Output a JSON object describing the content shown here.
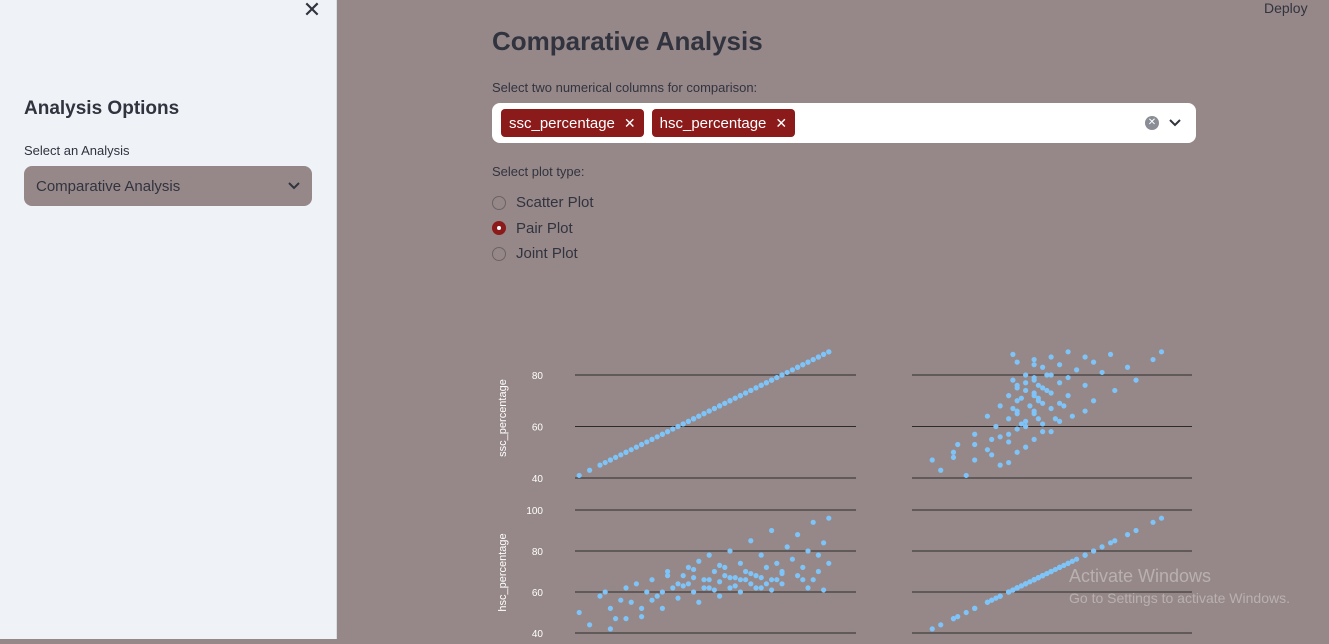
{
  "sidebar": {
    "close_glyph": "✕",
    "title": "Analysis Options",
    "select_label": "Select an Analysis",
    "select_value": "Comparative Analysis"
  },
  "header": {
    "deploy_label": "Deploy"
  },
  "main": {
    "title": "Comparative Analysis",
    "multiselect": {
      "label": "Select two numerical columns for comparison:",
      "selected": [
        "ssc_percentage",
        "hsc_percentage"
      ]
    },
    "plot_type": {
      "label": "Select plot type:",
      "options": [
        "Scatter Plot",
        "Pair Plot",
        "Joint Plot"
      ],
      "selected_index": 1
    }
  },
  "colors": {
    "accent": "#8b1a1a",
    "point": "#7ec4f8",
    "background": "#968888"
  },
  "chart_data": {
    "type": "scatter",
    "variables": [
      "ssc_percentage",
      "hsc_percentage"
    ],
    "ylabels": [
      "ssc_percentage",
      "hsc_percentage"
    ],
    "ssc_yticks": [
      40,
      60,
      80
    ],
    "hsc_yticks": [
      40,
      60,
      80,
      100
    ],
    "ssc_range": [
      40,
      90
    ],
    "hsc_range": [
      37,
      98
    ],
    "points": [
      [
        41,
        50
      ],
      [
        43,
        44
      ],
      [
        45,
        58
      ],
      [
        46,
        60
      ],
      [
        47,
        52
      ],
      [
        48,
        47
      ],
      [
        49,
        56
      ],
      [
        50,
        62
      ],
      [
        51,
        55
      ],
      [
        52,
        64
      ],
      [
        53,
        48
      ],
      [
        54,
        60
      ],
      [
        55,
        66
      ],
      [
        56,
        58
      ],
      [
        57,
        52
      ],
      [
        58,
        70
      ],
      [
        59,
        62
      ],
      [
        60,
        57
      ],
      [
        61,
        68
      ],
      [
        62,
        64
      ],
      [
        62,
        72
      ],
      [
        63,
        60
      ],
      [
        64,
        75
      ],
      [
        64,
        55
      ],
      [
        65,
        66
      ],
      [
        66,
        62
      ],
      [
        66,
        78
      ],
      [
        67,
        70
      ],
      [
        68,
        58
      ],
      [
        68,
        65
      ],
      [
        69,
        72
      ],
      [
        70,
        62
      ],
      [
        70,
        80
      ],
      [
        71,
        67
      ],
      [
        72,
        60
      ],
      [
        72,
        74
      ],
      [
        73,
        70
      ],
      [
        74,
        64
      ],
      [
        74,
        85
      ],
      [
        75,
        68
      ],
      [
        76,
        62
      ],
      [
        76,
        78
      ],
      [
        77,
        72
      ],
      [
        78,
        66
      ],
      [
        78,
        90
      ],
      [
        79,
        74
      ],
      [
        80,
        70
      ],
      [
        80,
        64
      ],
      [
        81,
        82
      ],
      [
        82,
        76
      ],
      [
        83,
        68
      ],
      [
        83,
        88
      ],
      [
        84,
        72
      ],
      [
        85,
        80
      ],
      [
        86,
        66
      ],
      [
        86,
        94
      ],
      [
        87,
        78
      ],
      [
        88,
        84
      ],
      [
        89,
        74
      ],
      [
        89,
        96
      ],
      [
        58,
        68
      ],
      [
        63,
        67
      ],
      [
        65,
        62
      ],
      [
        67,
        61
      ],
      [
        69,
        68
      ],
      [
        71,
        63
      ],
      [
        73,
        66
      ],
      [
        75,
        62
      ],
      [
        77,
        64
      ],
      [
        79,
        66
      ],
      [
        61,
        63
      ],
      [
        63,
        71
      ],
      [
        66,
        66
      ],
      [
        68,
        73
      ],
      [
        70,
        67
      ],
      [
        72,
        66
      ],
      [
        74,
        69
      ],
      [
        76,
        67
      ],
      [
        78,
        61
      ],
      [
        80,
        69
      ],
      [
        84,
        66
      ],
      [
        85,
        62
      ],
      [
        87,
        70
      ],
      [
        88,
        61
      ],
      [
        60,
        64
      ],
      [
        57,
        60
      ],
      [
        55,
        56
      ],
      [
        53,
        52
      ],
      [
        50,
        47
      ],
      [
        47,
        42
      ]
    ]
  }
}
